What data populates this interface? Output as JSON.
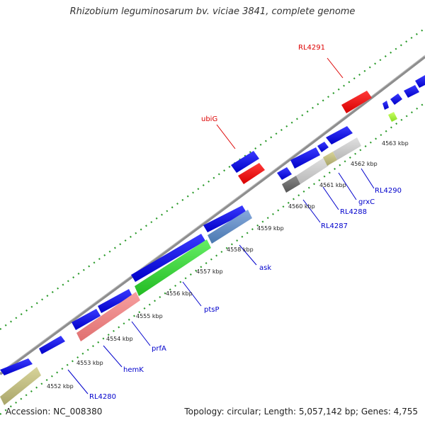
{
  "title": "Rhizobium leguminosarum bv. viciae 3841, complete genome",
  "footer": {
    "accession": "Accession: NC_008380",
    "topology": "Topology: circular; Length: 5,057,142 bp; Genes: 4,755"
  },
  "ticks": [
    "4552 kbp",
    "4553 kbp",
    "4554 kbp",
    "4555 kbp",
    "4556 kbp",
    "4557 kbp",
    "4558 kbp",
    "4559 kbp",
    "4560 kbp",
    "4561 kbp",
    "4562 kbp",
    "4563 kbp"
  ],
  "gene_labels": [
    {
      "text": "RL4291",
      "color": "#dd0000"
    },
    {
      "text": "ubiG",
      "color": "#dd0000"
    },
    {
      "text": "RL4290",
      "color": "#0000cc"
    },
    {
      "text": "grxC",
      "color": "#0000cc"
    },
    {
      "text": "RL4288",
      "color": "#0000cc"
    },
    {
      "text": "RL4287",
      "color": "#0000cc"
    },
    {
      "text": "ask",
      "color": "#0000cc"
    },
    {
      "text": "ptsP",
      "color": "#0000cc"
    },
    {
      "text": "prfA",
      "color": "#0000cc"
    },
    {
      "text": "hemK",
      "color": "#0000cc"
    },
    {
      "text": "RL4280",
      "color": "#0000cc"
    }
  ],
  "colors": {
    "cds": "#1010e0",
    "trna_red": "#ee1111",
    "gc_dots": "#2a9a2a",
    "backbone": "#888888"
  }
}
